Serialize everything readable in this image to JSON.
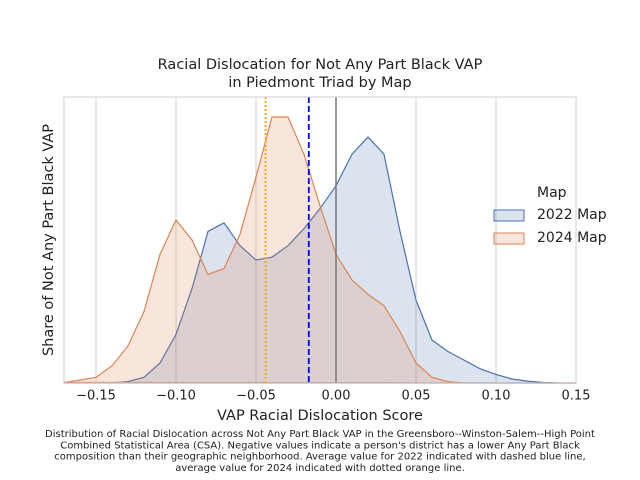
{
  "chart_data": {
    "type": "kde",
    "title": [
      "Racial Dislocation for Not Any Part Black VAP",
      "in Piedmont Triad by Map"
    ],
    "xlabel": "VAP Racial Dislocation Score",
    "ylabel": "Share of Not Any Part Black VAP",
    "legend_title": "Map",
    "legend": "right",
    "grid": true,
    "xlim": [
      -0.17,
      0.15
    ],
    "ylim": [
      0,
      1
    ],
    "xticks": [
      {
        "value": -0.15,
        "label": "−0.15"
      },
      {
        "value": -0.1,
        "label": "−0.10"
      },
      {
        "value": -0.05,
        "label": "−0.05"
      },
      {
        "value": 0,
        "label": "0.00"
      },
      0.05,
      {
        "value": 0.1,
        "label": "0.10"
      },
      0.15
    ],
    "x": [
      -0.17,
      -0.16,
      -0.15,
      -0.14,
      -0.13,
      -0.12,
      -0.11,
      -0.1,
      -0.09,
      -0.08,
      -0.07,
      -0.06,
      -0.05,
      -0.04,
      -0.03,
      -0.02,
      -0.01,
      0,
      0.01,
      0.02,
      0.03,
      0.04,
      0.05,
      0.06,
      0.07,
      0.08,
      0.09,
      0.1,
      0.11,
      0.12,
      0.13,
      0.14,
      0.15
    ],
    "series": [
      {
        "name": "2022 Map",
        "color": "#4c72b0",
        "values": [
          0,
          0,
          0,
          0,
          0.005,
          0.02,
          0.07,
          0.17,
          0.33,
          0.53,
          0.56,
          0.48,
          0.43,
          0.44,
          0.48,
          0.54,
          0.61,
          0.69,
          0.8,
          0.86,
          0.8,
          0.53,
          0.29,
          0.15,
          0.11,
          0.08,
          0.05,
          0.03,
          0.014,
          0.006,
          0.002,
          0,
          0
        ]
      },
      {
        "name": "2024 Map",
        "color": "#dd8452",
        "values": [
          0.002,
          0.01,
          0.02,
          0.06,
          0.13,
          0.25,
          0.45,
          0.57,
          0.5,
          0.38,
          0.4,
          0.52,
          0.72,
          0.93,
          0.93,
          0.8,
          0.62,
          0.45,
          0.36,
          0.31,
          0.27,
          0.18,
          0.07,
          0.02,
          0.005,
          0,
          0,
          0,
          0,
          0,
          0,
          0,
          0
        ]
      }
    ],
    "vlines": [
      {
        "value": 0,
        "color": "#777777",
        "style": "solid"
      },
      {
        "value": -0.017,
        "color": "#0000ff",
        "style": "dashed"
      },
      {
        "value": -0.044,
        "color": "#ffa500",
        "style": "dotted"
      }
    ],
    "caption": [
      "Distribution of Racial Dislocation across Not Any Part Black VAP in the Greensboro--Winston-Salem--High Point",
      "Combined Statistical Area (CSA). Negative values indicate a person's district has a lower Any Part Black",
      "composition than their geographic neighborhood. Average value for 2022 indicated with dashed blue line,",
      "average value for 2024 indicated with dotted orange line."
    ]
  }
}
